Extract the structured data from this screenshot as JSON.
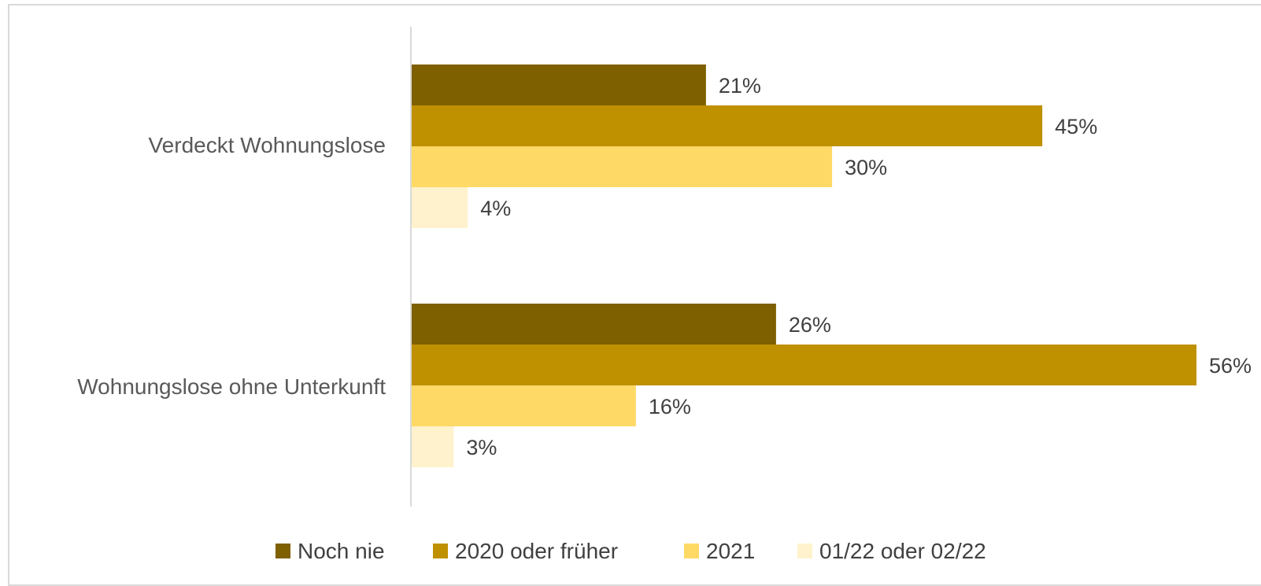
{
  "chart_data": {
    "type": "bar",
    "orientation": "horizontal",
    "categories": [
      "Verdeckt Wohnungslose",
      "Wohnungslose ohne Unterkunft"
    ],
    "series": [
      {
        "name": "Noch nie",
        "color": "#7f6000",
        "values": [
          21,
          26
        ],
        "labels": [
          "21%",
          "26%"
        ]
      },
      {
        "name": "2020 oder früher",
        "color": "#bf9000",
        "values": [
          45,
          56
        ],
        "labels": [
          "45%",
          "56%"
        ]
      },
      {
        "name": "2021",
        "color": "#ffd966",
        "values": [
          30,
          16
        ],
        "labels": [
          "30%",
          "16%"
        ]
      },
      {
        "name": "01/22 oder 02/22",
        "color": "#fff2cc",
        "values": [
          4,
          3
        ],
        "labels": [
          "4%",
          "3%"
        ]
      }
    ],
    "xlim": [
      0,
      56
    ],
    "legend": "bottom",
    "grid": false
  }
}
